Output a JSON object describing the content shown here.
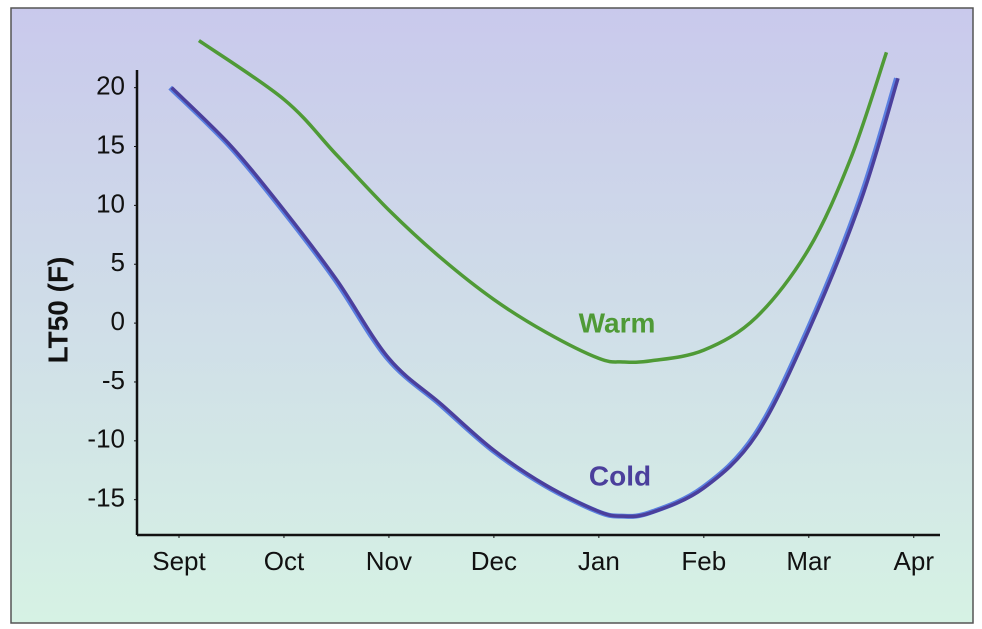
{
  "chart_data": {
    "type": "line",
    "y_label": "LT50 (F)",
    "xlim": [
      -0.4,
      7.25
    ],
    "xticks": [
      {
        "value": 0,
        "label": "Sept"
      },
      {
        "value": 1,
        "label": "Oct"
      },
      {
        "value": 2,
        "label": "Nov"
      },
      {
        "value": 3,
        "label": "Dec"
      },
      {
        "value": 4,
        "label": "Jan"
      },
      {
        "value": 5,
        "label": "Feb"
      },
      {
        "value": 6,
        "label": "Mar"
      },
      {
        "value": 7,
        "label": "Apr"
      }
    ],
    "ylim": [
      -18,
      21.5
    ],
    "yticks": [
      20,
      15,
      10,
      5,
      0,
      -5,
      -10,
      -15
    ],
    "series": [
      {
        "name": "Warm",
        "color": "#4f9a36",
        "x": [
          0.19,
          1,
          1.5,
          2,
          2.5,
          3,
          3.5,
          4,
          4.23,
          4.5,
          5,
          5.5,
          6,
          6.4,
          6.74
        ],
        "values": [
          24,
          19,
          14.3,
          9.6,
          5.5,
          2,
          -0.8,
          -3,
          -3.3,
          -3.2,
          -2.3,
          0.5,
          6.3,
          14,
          23
        ]
      },
      {
        "name": "Cold",
        "color": "#4b3f9c",
        "x": [
          -0.07,
          0.5,
          1,
          1.5,
          2,
          2.5,
          3,
          3.5,
          4,
          4.23,
          4.5,
          5,
          5.5,
          6,
          6.5,
          6.85
        ],
        "values": [
          20,
          15,
          9.6,
          3.7,
          -3,
          -6.9,
          -10.8,
          -13.8,
          -16,
          -16.4,
          -16.1,
          -14,
          -9.5,
          -0.6,
          10.5,
          20.8
        ]
      }
    ]
  }
}
